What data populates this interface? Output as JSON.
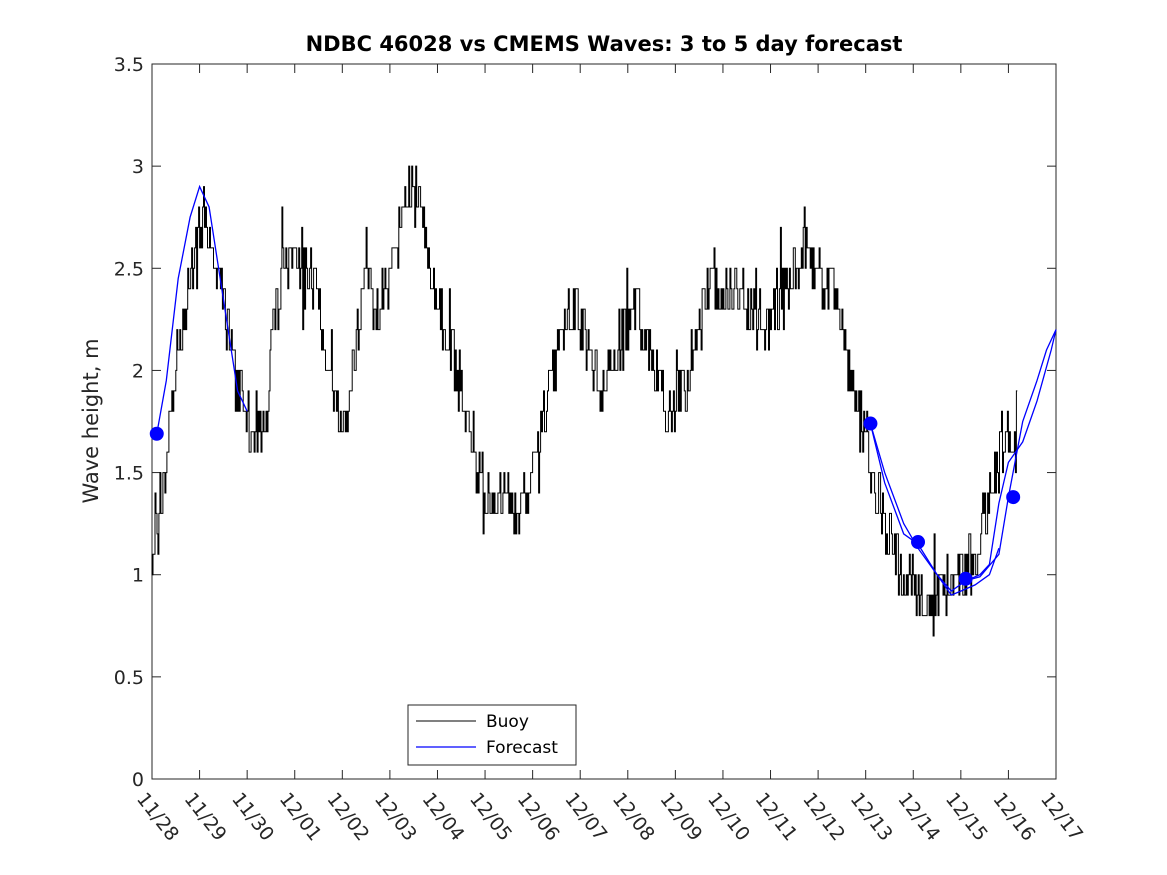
{
  "chart_data": {
    "type": "line",
    "title": "NDBC 46028 vs CMEMS Waves: 3 to 5 day forecast",
    "ylabel": "Wave height, m",
    "xlabel": "",
    "x_units": "days since 11/28 00:00",
    "xlim": [
      0,
      19
    ],
    "ylim": [
      0,
      3.5
    ],
    "yticks": [
      0,
      0.5,
      1,
      1.5,
      2,
      2.5,
      3,
      3.5
    ],
    "ytick_labels": [
      "0",
      "0.5",
      "1",
      "1.5",
      "2",
      "2.5",
      "3",
      "3.5"
    ],
    "xticks": [
      0,
      1,
      2,
      3,
      4,
      5,
      6,
      7,
      8,
      9,
      10,
      11,
      12,
      13,
      14,
      15,
      16,
      17,
      18,
      19
    ],
    "xtick_labels": [
      "11/28",
      "11/29",
      "11/30",
      "12/01",
      "12/02",
      "12/03",
      "12/04",
      "12/05",
      "12/06",
      "12/07",
      "12/08",
      "12/09",
      "12/10",
      "12/11",
      "12/12",
      "12/13",
      "12/14",
      "12/15",
      "12/16",
      "12/17"
    ],
    "legend": {
      "position": "bottom-center",
      "entries": [
        "Buoy",
        "Forecast"
      ]
    },
    "colors": {
      "buoy": "#000000",
      "forecast": "#0000ff",
      "axes": "#262626"
    },
    "series": [
      {
        "name": "Buoy",
        "color": "#000000",
        "noise": 0.28,
        "x": [
          0,
          0.25,
          0.5,
          0.75,
          1.0,
          1.1,
          1.3,
          1.6,
          1.8,
          2.0,
          2.2,
          2.4,
          2.6,
          2.8,
          3.0,
          3.3,
          3.5,
          3.7,
          3.9,
          4.1,
          4.3,
          4.5,
          4.7,
          4.9,
          5.1,
          5.3,
          5.5,
          5.8,
          6.0,
          6.2,
          6.5,
          6.8,
          7.0,
          7.2,
          7.4,
          7.6,
          7.8,
          8.0,
          8.3,
          8.6,
          8.9,
          9.2,
          9.5,
          9.8,
          10.0,
          10.2,
          10.5,
          10.8,
          11.0,
          11.2,
          11.5,
          11.8,
          12.0,
          12.3,
          12.6,
          12.9,
          13.1,
          13.4,
          13.7,
          14.0,
          14.3,
          14.6,
          14.8,
          15.0,
          15.1,
          15.3,
          15.5,
          15.8,
          16.1,
          16.4,
          16.7,
          17.0,
          17.3,
          17.6,
          17.8,
          18.0,
          18.2
        ],
        "y": [
          1.1,
          1.4,
          2.0,
          2.3,
          2.7,
          2.8,
          2.6,
          2.2,
          1.9,
          1.8,
          1.65,
          1.7,
          2.3,
          2.5,
          2.5,
          2.5,
          2.4,
          2.0,
          1.8,
          1.8,
          2.1,
          2.6,
          2.2,
          2.4,
          2.5,
          2.9,
          2.9,
          2.6,
          2.3,
          2.2,
          1.9,
          1.6,
          1.4,
          1.35,
          1.4,
          1.3,
          1.3,
          1.5,
          1.8,
          2.2,
          2.3,
          2.1,
          1.9,
          2.1,
          2.2,
          2.3,
          2.1,
          1.8,
          1.8,
          1.9,
          2.2,
          2.4,
          2.4,
          2.4,
          2.3,
          2.2,
          2.3,
          2.4,
          2.6,
          2.5,
          2.4,
          2.05,
          1.8,
          1.7,
          1.55,
          1.35,
          1.15,
          1.0,
          0.9,
          0.85,
          0.95,
          1.0,
          1.05,
          1.35,
          1.6,
          1.65,
          1.65
        ]
      },
      {
        "name": "Forecast",
        "color": "#0000ff",
        "segments": [
          {
            "x": [
              0.1,
              0.3,
              0.55,
              0.8,
              1.0,
              1.2,
              1.4,
              1.6,
              1.8,
              2.0
            ],
            "y": [
              1.69,
              1.95,
              2.45,
              2.75,
              2.9,
              2.8,
              2.5,
              2.2,
              1.9,
              1.8
            ]
          },
          {
            "x": [
              15.1,
              15.4,
              15.8,
              16.1,
              16.5,
              16.8,
              17.1,
              17.4,
              17.6,
              17.8,
              18.0,
              18.3,
              18.6,
              18.9,
              19.0
            ],
            "y": [
              1.74,
              1.45,
              1.2,
              1.15,
              1.0,
              0.92,
              0.97,
              1.0,
              1.05,
              1.35,
              1.55,
              1.65,
              1.85,
              2.1,
              2.2
            ]
          },
          {
            "x": [
              15.1,
              15.4,
              15.8,
              16.1,
              16.5,
              16.8,
              17.0,
              17.3,
              17.6,
              17.8
            ],
            "y": [
              1.74,
              1.5,
              1.25,
              1.13,
              1.0,
              0.9,
              0.92,
              0.95,
              1.0,
              1.13
            ]
          },
          {
            "x": [
              17.1,
              17.4,
              17.8,
              18.0,
              18.3,
              18.6,
              18.8,
              19.0
            ],
            "y": [
              0.97,
              0.99,
              1.1,
              1.38,
              1.75,
              1.95,
              2.1,
              2.2
            ]
          }
        ],
        "markers": {
          "x": [
            0.1,
            15.1,
            16.1,
            17.1,
            18.1
          ],
          "y": [
            1.69,
            1.74,
            1.16,
            0.98,
            1.38
          ]
        }
      }
    ]
  }
}
